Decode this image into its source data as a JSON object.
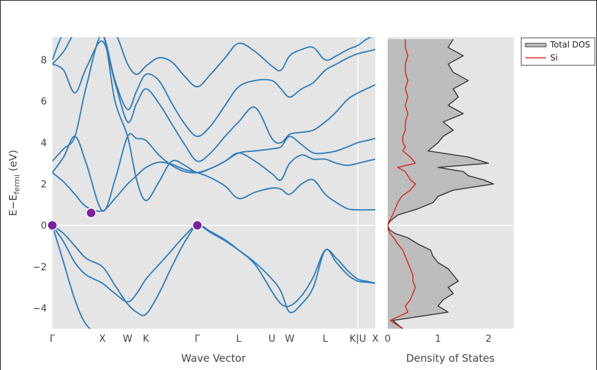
{
  "colors": {
    "plot_bg": "#e5e5e5",
    "band": "#2e7cba",
    "marker": "#7c209f",
    "total_dos_fill": "#bdbdbd",
    "total_dos_line": "#3a3a3a",
    "si": "#d62728",
    "gridline": "#ffffff"
  },
  "chart_data": [
    {
      "type": "line",
      "title": "",
      "xlabel": "Wave Vector",
      "ylabel_main": "E−E",
      "ylabel_sub": "fermi",
      "ylabel_unit": " (eV)",
      "ylim": [
        -5,
        9.1
      ],
      "yticks": [
        -4,
        -2,
        0,
        2,
        4,
        6,
        8
      ],
      "ytick_labels": [
        "−4",
        "−2",
        "0",
        "2",
        "4",
        "6",
        "8"
      ],
      "x_range": [
        0,
        1
      ],
      "kpoints": [
        {
          "label": "Γ",
          "x": 0.0
        },
        {
          "label": "X",
          "x": 0.155
        },
        {
          "label": "W",
          "x": 0.233
        },
        {
          "label": "K",
          "x": 0.29
        },
        {
          "label": "Γ",
          "x": 0.449
        },
        {
          "label": "L",
          "x": 0.577
        },
        {
          "label": "U",
          "x": 0.68
        },
        {
          "label": "W",
          "x": 0.735
        },
        {
          "label": "L",
          "x": 0.845
        },
        {
          "label": "K|U",
          "x": 0.946
        },
        {
          "label": "X",
          "x": 1.0
        }
      ],
      "grid_x": 0.946,
      "zero_line": 0,
      "band_points": [
        {
          "x": 0.0,
          "y": 0.0
        },
        {
          "x": 0.12,
          "y": 0.6
        },
        {
          "x": 0.449,
          "y": 0.0
        }
      ],
      "band_nodes": [
        0,
        0.035,
        0.07,
        0.105,
        0.155,
        0.194,
        0.233,
        0.261,
        0.29,
        0.33,
        0.37,
        0.41,
        0.449,
        0.49,
        0.535,
        0.577,
        0.628,
        0.68,
        0.708,
        0.735,
        0.772,
        0.808,
        0.845,
        0.88,
        0.915,
        0.946,
        0.973,
        1.0
      ],
      "series": [
        {
          "values": [
            0,
            -1.8,
            -3.6,
            -4.8,
            -5.4,
            -5.5,
            -5.6,
            -5.6,
            -5.6,
            -5.5,
            -5.4,
            -5.3,
            -5.1,
            -5.3,
            -5.4,
            -5.5,
            -5.5,
            -5.5,
            -5.5,
            -5.5,
            -5.5,
            -5.5,
            -5.5,
            -5.5,
            -5.5,
            -5.5,
            -5.5,
            -5.5
          ]
        },
        {
          "values": [
            0,
            -0.8,
            -1.8,
            -2.4,
            -2.8,
            -3.3,
            -3.7,
            -3.3,
            -2.6,
            -1.9,
            -1.2,
            -0.5,
            0,
            -0.35,
            -0.75,
            -1.2,
            -1.8,
            -2.6,
            -3.2,
            -4.2,
            -3.8,
            -3.0,
            -1.2,
            -1.8,
            -2.4,
            -2.7,
            -2.75,
            -2.8
          ]
        },
        {
          "values": [
            0,
            -0.4,
            -1.0,
            -1.6,
            -2.0,
            -2.9,
            -3.8,
            -4.2,
            -4.3,
            -3.3,
            -2.0,
            -0.8,
            0,
            -0.3,
            -0.7,
            -1.2,
            -1.9,
            -3.2,
            -3.8,
            -3.9,
            -3.4,
            -2.5,
            -1.2,
            -1.6,
            -2.2,
            -2.6,
            -2.7,
            -2.8
          ]
        },
        {
          "values": [
            2.55,
            2.1,
            1.5,
            0.9,
            0.7,
            1.3,
            2.0,
            2.4,
            2.8,
            3.05,
            2.95,
            2.7,
            2.55,
            2.3,
            1.9,
            1.3,
            1.6,
            1.8,
            1.75,
            1.5,
            2.0,
            2.2,
            1.5,
            1.1,
            0.8,
            0.75,
            0.75,
            0.75
          ]
        },
        {
          "values": [
            2.55,
            3.3,
            4.3,
            3.0,
            0.7,
            2.2,
            4.3,
            4.2,
            4.1,
            3.4,
            2.9,
            2.6,
            2.55,
            2.75,
            3.1,
            3.5,
            3.6,
            3.7,
            3.8,
            4.3,
            3.9,
            3.5,
            3.5,
            3.6,
            3.8,
            4.0,
            4.1,
            4.2
          ]
        },
        {
          "values": [
            3.1,
            3.7,
            4.3,
            6.7,
            9.2,
            6.0,
            4.3,
            2.2,
            1.2,
            2.1,
            3.1,
            2.9,
            2.55,
            2.75,
            3.1,
            3.5,
            3.1,
            2.5,
            2.2,
            3.0,
            3.4,
            3.2,
            3.2,
            3.0,
            2.9,
            3.0,
            3.1,
            3.2
          ]
        },
        {
          "values": [
            7.8,
            7.5,
            6.4,
            7.6,
            8.9,
            6.9,
            5.0,
            5.9,
            6.6,
            5.9,
            4.9,
            3.9,
            3.1,
            3.5,
            4.3,
            5.0,
            5.7,
            4.2,
            4.0,
            4.4,
            4.5,
            4.6,
            5.0,
            5.5,
            6.1,
            6.4,
            6.6,
            6.8
          ]
        },
        {
          "values": [
            7.8,
            8.4,
            9.3,
            9.3,
            9.3,
            7.0,
            5.6,
            6.5,
            7.3,
            7.0,
            5.9,
            4.9,
            4.3,
            4.8,
            5.8,
            6.7,
            7.0,
            7.0,
            6.6,
            6.2,
            6.6,
            6.9,
            7.5,
            7.8,
            8.1,
            8.3,
            8.4,
            8.5
          ]
        },
        {
          "values": [
            8.0,
            9.3,
            9.3,
            9.3,
            9.3,
            9.3,
            7.8,
            7.3,
            7.7,
            8.1,
            7.9,
            7.2,
            6.7,
            7.3,
            8.1,
            8.8,
            8.4,
            7.7,
            7.5,
            8.2,
            8.5,
            8.6,
            8.0,
            8.2,
            8.5,
            8.7,
            9.0,
            9.2
          ]
        }
      ]
    },
    {
      "type": "area",
      "xlabel": "Density of States",
      "xlim": [
        0,
        2.5
      ],
      "xticks": [
        0,
        1,
        2
      ],
      "xtick_labels": [
        "0",
        "1",
        "2"
      ],
      "y": [
        -5.0,
        -4.6,
        -4.2,
        -3.9,
        -3.6,
        -3.3,
        -3.0,
        -2.7,
        -2.4,
        -2.1,
        -1.8,
        -1.5,
        -1.2,
        -0.9,
        -0.6,
        -0.4,
        -0.2,
        0.0,
        0.2,
        0.5,
        0.8,
        1.1,
        1.4,
        1.7,
        2.0,
        2.2,
        2.4,
        2.6,
        2.8,
        3.0,
        3.3,
        3.6,
        3.8,
        4.0,
        4.3,
        4.6,
        5.0,
        5.4,
        5.8,
        6.2,
        6.6,
        7.0,
        7.4,
        7.8,
        8.2,
        8.6,
        9.0
      ],
      "series": [
        {
          "name": "Total DOS",
          "values": [
            0.3,
            0.1,
            1.2,
            1.0,
            1.1,
            1.3,
            1.2,
            1.4,
            1.3,
            1.2,
            1.0,
            0.9,
            0.85,
            0.6,
            0.4,
            0.15,
            0.03,
            0.0,
            0.05,
            0.2,
            0.6,
            0.9,
            1.0,
            1.3,
            2.1,
            1.9,
            1.6,
            1.5,
            1.0,
            2.0,
            1.6,
            0.8,
            0.9,
            1.0,
            1.1,
            1.3,
            1.1,
            1.5,
            1.2,
            1.4,
            1.3,
            1.6,
            1.3,
            1.2,
            1.5,
            1.2,
            1.3
          ]
        },
        {
          "name": "Si",
          "values": [
            0.3,
            0.05,
            0.4,
            0.35,
            0.45,
            0.5,
            0.55,
            0.5,
            0.5,
            0.45,
            0.4,
            0.35,
            0.3,
            0.2,
            0.12,
            0.05,
            0.01,
            0.0,
            0.03,
            0.1,
            0.15,
            0.2,
            0.28,
            0.45,
            0.55,
            0.45,
            0.4,
            0.35,
            0.2,
            0.55,
            0.45,
            0.3,
            0.35,
            0.3,
            0.3,
            0.35,
            0.35,
            0.4,
            0.35,
            0.4,
            0.35,
            0.4,
            0.35,
            0.35,
            0.4,
            0.35,
            0.35
          ]
        }
      ],
      "legend": {
        "placement": "top-right",
        "items": [
          "Total DOS",
          "Si"
        ]
      }
    }
  ]
}
